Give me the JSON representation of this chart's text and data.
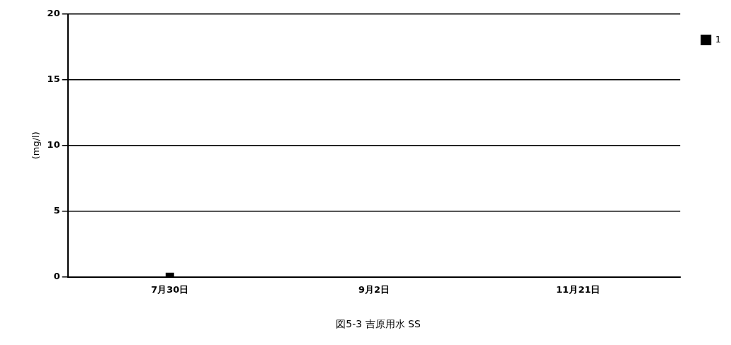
{
  "chart_data": {
    "type": "line",
    "title": "図5-3 吉原用水 SS",
    "ylabel": "(mg/l)",
    "categories": [
      "7月30日",
      "9月2日",
      "11月21日"
    ],
    "series": [
      {
        "name": "1",
        "color": "#000000",
        "values": [
          0,
          null,
          null
        ]
      }
    ],
    "ylim": [
      0,
      20
    ],
    "yticks": [
      0,
      5,
      10,
      15,
      20
    ],
    "grid": "y",
    "legend": "top right",
    "marker": "square"
  }
}
